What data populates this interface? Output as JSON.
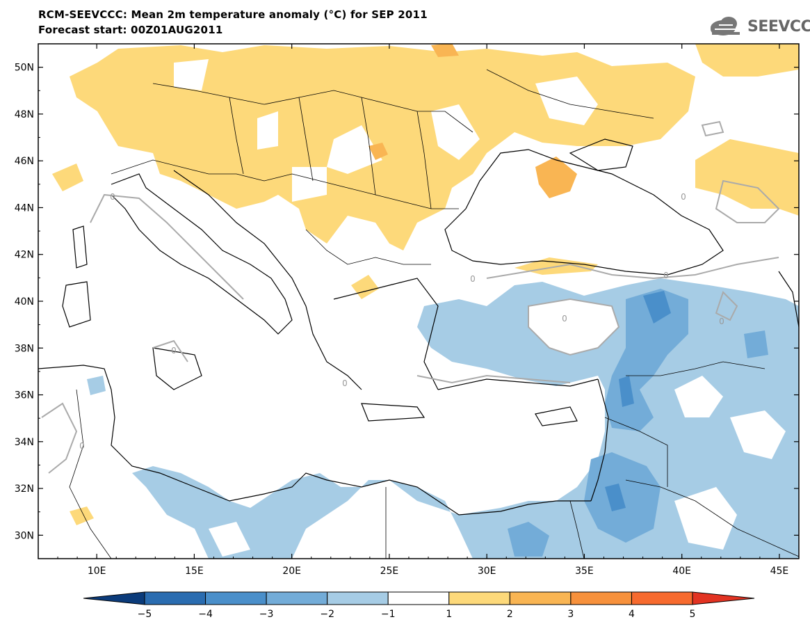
{
  "header": {
    "title": "RCM-SEEVCCC: Mean 2m temperature anomaly (°C) for SEP 2011",
    "subtitle": "Forecast start: 00Z01AUG2011",
    "logo_text": "SEEVCCC"
  },
  "map": {
    "projection": "lat-lon",
    "lon_range": [
      7,
      46
    ],
    "lat_range": [
      29,
      51
    ],
    "lat_ticks": [
      "50N",
      "48N",
      "46N",
      "44N",
      "42N",
      "40N",
      "38N",
      "36N",
      "34N",
      "32N",
      "30N"
    ],
    "lon_ticks": [
      "10E",
      "15E",
      "20E",
      "25E",
      "30E",
      "35E",
      "40E",
      "45E"
    ],
    "contour_label": "0"
  },
  "colorbar": {
    "labels": [
      "−5",
      "−4",
      "−3",
      "−2",
      "−1",
      "1",
      "2",
      "3",
      "4",
      "5"
    ],
    "colors": [
      "#0b3b7a",
      "#2a6cb0",
      "#4a8fca",
      "#73acd8",
      "#a6cce5",
      "#ffffff",
      "#fdd97a",
      "#f9b553",
      "#f7913c",
      "#f76a2e",
      "#e23322"
    ]
  }
}
